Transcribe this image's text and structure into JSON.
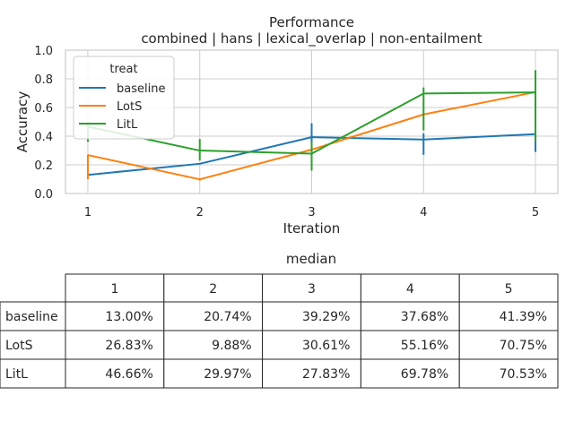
{
  "chart_data": {
    "type": "line",
    "title": "Performance",
    "subtitle": "combined | hans | lexical_overlap | non-entailment",
    "xlabel": "Iteration",
    "ylabel": "Accuracy",
    "x": [
      1,
      2,
      3,
      4,
      5
    ],
    "x_ticks": [
      "1",
      "2",
      "3",
      "4",
      "5"
    ],
    "ylim": [
      0.0,
      1.0
    ],
    "y_ticks": [
      "0.0",
      "0.2",
      "0.4",
      "0.6",
      "0.8",
      "1.0"
    ],
    "grid": true,
    "legend": {
      "title": "treat",
      "placement": "top-left"
    },
    "series": [
      {
        "name": "baseline",
        "color": "#1f77b4",
        "values": [
          0.13,
          0.2074,
          0.3929,
          0.3768,
          0.4139
        ],
        "error_low": [
          null,
          null,
          0.29,
          0.27,
          0.29
        ],
        "error_high": [
          null,
          null,
          0.49,
          0.42,
          0.41
        ]
      },
      {
        "name": "LotS",
        "color": "#ff7f0e",
        "values": [
          0.2683,
          0.0988,
          0.3061,
          0.5516,
          0.7075
        ],
        "error_low": [
          0.1,
          0.09,
          0.31,
          0.55,
          0.71
        ],
        "error_high": [
          0.27,
          0.1,
          0.31,
          0.56,
          0.71
        ]
      },
      {
        "name": "LitL",
        "color": "#2ca02c",
        "values": [
          0.4666,
          0.2997,
          0.2783,
          0.6978,
          0.7053
        ],
        "error_low": [
          0.36,
          0.23,
          0.16,
          0.44,
          0.36
        ],
        "error_high": [
          0.5,
          0.38,
          0.36,
          0.74,
          0.86
        ]
      }
    ],
    "table": {
      "title": "median",
      "columns": [
        "1",
        "2",
        "3",
        "4",
        "5"
      ],
      "rows": [
        {
          "label": "baseline",
          "cells": [
            "13.00%",
            "20.74%",
            "39.29%",
            "37.68%",
            "41.39%"
          ]
        },
        {
          "label": "LotS",
          "cells": [
            "26.83%",
            "9.88%",
            "30.61%",
            "55.16%",
            "70.75%"
          ]
        },
        {
          "label": "LitL",
          "cells": [
            "46.66%",
            "29.97%",
            "27.83%",
            "69.78%",
            "70.53%"
          ]
        }
      ]
    }
  }
}
